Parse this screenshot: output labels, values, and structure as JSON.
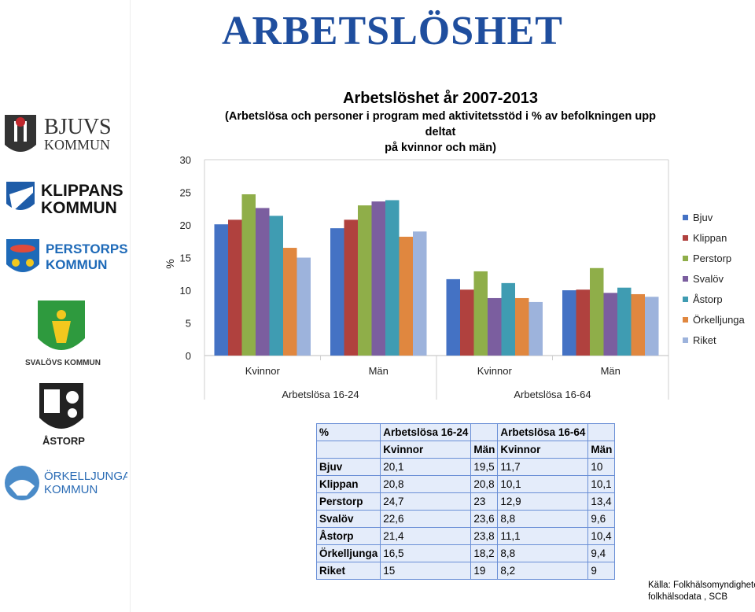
{
  "slide_title": "ARBETSLÖSHET",
  "logos": [
    {
      "name": "bjuvs-kommun-logo",
      "lines": [
        "BJUVS",
        "KOMMUN"
      ]
    },
    {
      "name": "klippans-kommun-logo",
      "lines": [
        "KLIPPANS",
        "KOMMUN"
      ]
    },
    {
      "name": "perstorps-kommun-logo",
      "lines": [
        "PERSTORPS",
        "KOMMUN"
      ]
    },
    {
      "name": "svalovs-kommun-logo",
      "lines": [
        "SVALÖVS KOMMUN"
      ]
    },
    {
      "name": "astorp-logo",
      "lines": [
        "ÅSTORP"
      ]
    },
    {
      "name": "orkelljunga-kommun-logo",
      "lines": [
        "ÖRKELLJUNGA",
        "KOMMUN"
      ]
    }
  ],
  "colors": {
    "title": "#1F4E9E",
    "Bjuv": "#4472C4",
    "Klippan": "#B0413E",
    "Perstorp": "#8FAE49",
    "Svalöv": "#7B5E9F",
    "Åstorp": "#3F9CB2",
    "Örkelljunga": "#E0873F",
    "Riket": "#9DB3DC",
    "table_bg": "#E4ECFA",
    "table_border": "#6A8FD6"
  },
  "chart_data": {
    "type": "bar",
    "title": "Arbetslöshet år 2007-2013",
    "subtitle_lines": [
      "(Arbetslösa och personer i program med aktivitetsstöd i % av befolkningen upp deltat",
      "på kvinnor och män)"
    ],
    "ylabel": "%",
    "ylim": [
      0,
      30
    ],
    "yticks": [
      0,
      5,
      10,
      15,
      20,
      25,
      30
    ],
    "grid": false,
    "legend_position": "right",
    "categories": [
      "Kvinnor",
      "Män",
      "Kvinnor",
      "Män"
    ],
    "groups": [
      {
        "label": "Arbetslösa 16-24",
        "categories": [
          "Kvinnor",
          "Män"
        ]
      },
      {
        "label": "Arbetslösa 16-64",
        "categories": [
          "Kvinnor",
          "Män"
        ]
      }
    ],
    "series": [
      {
        "name": "Bjuv",
        "values": [
          20.1,
          19.5,
          11.7,
          10
        ]
      },
      {
        "name": "Klippan",
        "values": [
          20.8,
          20.8,
          10.1,
          10.1
        ]
      },
      {
        "name": "Perstorp",
        "values": [
          24.7,
          23,
          12.9,
          13.4
        ]
      },
      {
        "name": "Svalöv",
        "values": [
          22.6,
          23.6,
          8.8,
          9.6
        ]
      },
      {
        "name": "Åstorp",
        "values": [
          21.4,
          23.8,
          11.1,
          10.4
        ]
      },
      {
        "name": "Örkelljunga",
        "values": [
          16.5,
          18.2,
          8.8,
          9.4
        ]
      },
      {
        "name": "Riket",
        "values": [
          15,
          19,
          8.2,
          9
        ]
      }
    ]
  },
  "table": {
    "header1": [
      "%",
      "Arbetslösa 16-24",
      "",
      "Arbetslösa 16-64",
      ""
    ],
    "header2": [
      "",
      "Kvinnor",
      "Män",
      "Kvinnor",
      "Män"
    ],
    "rows": [
      [
        "Bjuv",
        "20,1",
        "19,5",
        "11,7",
        "10"
      ],
      [
        "Klippan",
        "20,8",
        "20,8",
        "10,1",
        "10,1"
      ],
      [
        "Perstorp",
        "24,7",
        "23",
        "12,9",
        "13,4"
      ],
      [
        "Svalöv",
        "22,6",
        "23,6",
        "8,8",
        "9,6"
      ],
      [
        "Åstorp",
        "21,4",
        "23,8",
        "11,1",
        "10,4"
      ],
      [
        "Örkelljunga",
        "16,5",
        "18,2",
        "8,8",
        "9,4"
      ],
      [
        "Riket",
        "15",
        "19",
        "8,2",
        "9"
      ]
    ]
  },
  "source_lines": [
    "Källa: Folkhälsomyndigheten,",
    "folkhälsodata , SCB"
  ]
}
